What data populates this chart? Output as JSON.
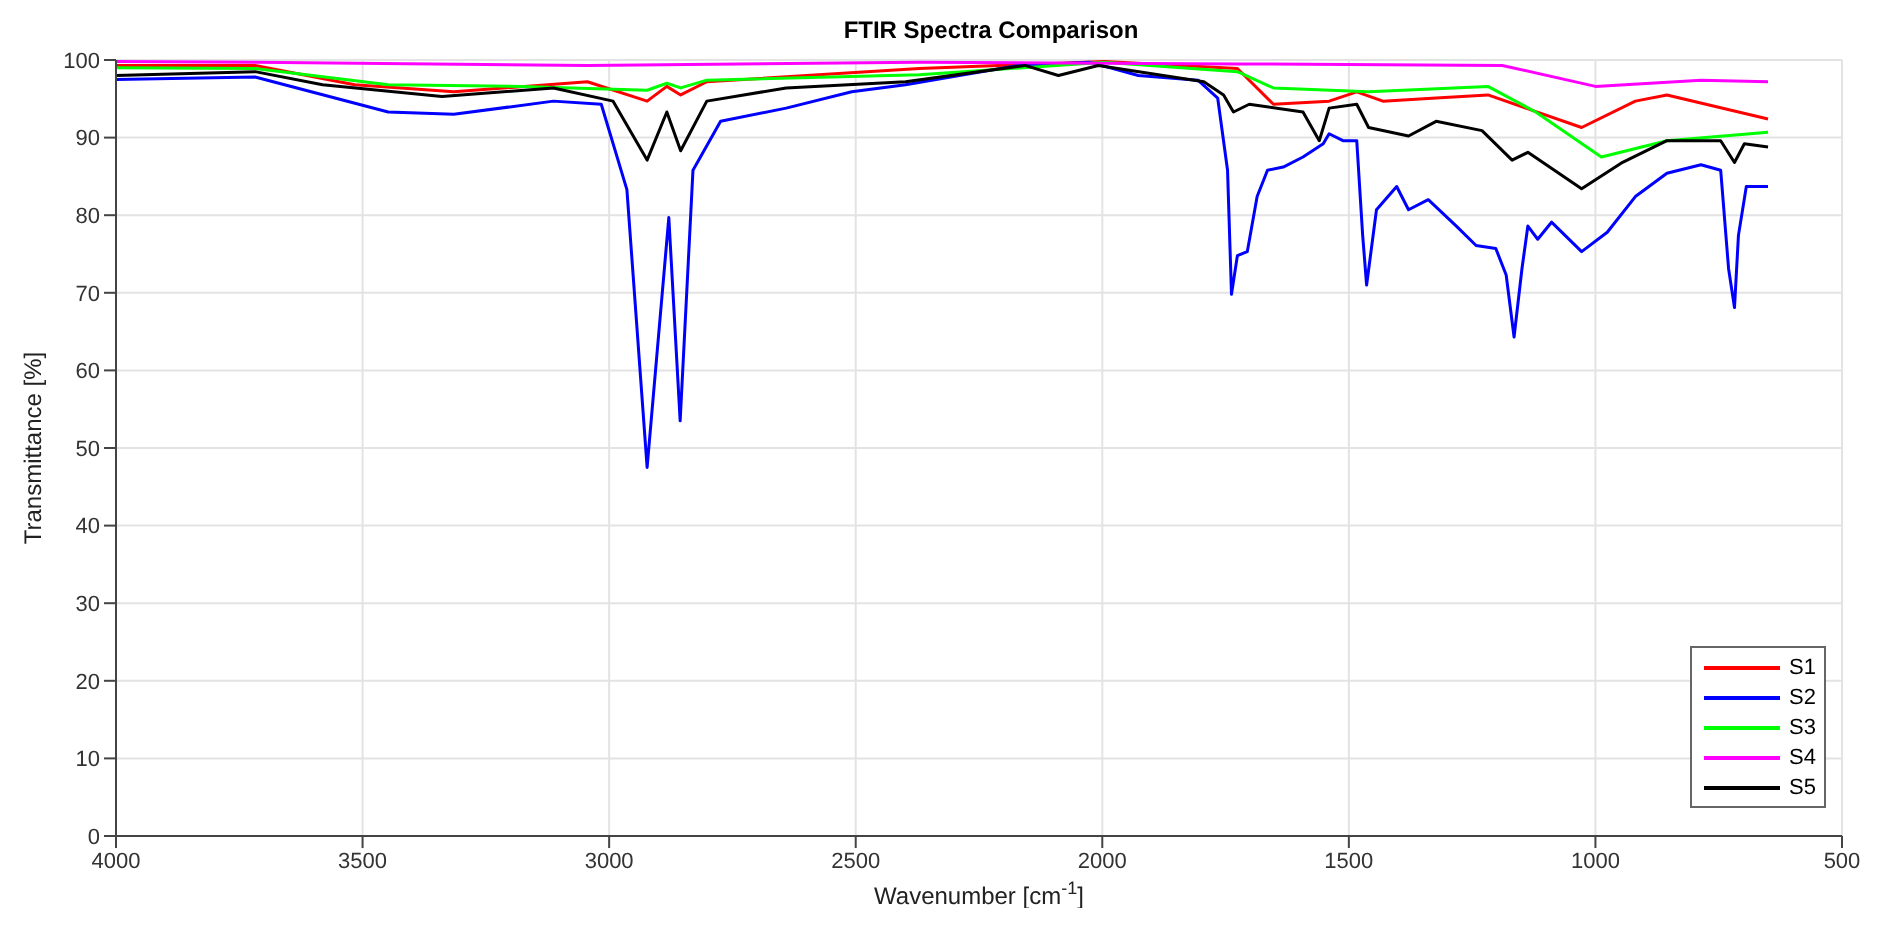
{
  "chart_data": {
    "type": "line",
    "title": "FTIR Spectra Comparison",
    "xlabel": "Wavenumber [cm$^{-1}$]",
    "ylabel": "Transmittance [%]",
    "xlim": [
      4000,
      500
    ],
    "xticks": [
      4000,
      3500,
      3000,
      2500,
      2000,
      1500,
      1000,
      500
    ],
    "ylim": [
      0,
      100
    ],
    "yticks": [
      0,
      10,
      20,
      30,
      40,
      50,
      60,
      70,
      80,
      90,
      100
    ],
    "grid": true,
    "legend": "bottom right",
    "marker": "none",
    "line_style": "solid",
    "series": [
      {
        "name": "S1",
        "color": "#ff0000",
        "x": [
          4000,
          3718,
          3516,
          3315,
          3044,
          2923,
          2883,
          2855,
          2802,
          2371,
          1996,
          1726,
          1653,
          1540,
          1484,
          1431,
          1323,
          1218,
          1028,
          919,
          855,
          650
        ],
        "values": [
          99.3,
          99.3,
          96.8,
          95.9,
          97.2,
          94.7,
          96.6,
          95.5,
          97.2,
          98.9,
          99.8,
          98.9,
          94.3,
          94.7,
          95.9,
          94.7,
          95.1,
          95.5,
          91.3,
          94.7,
          95.5,
          92.4
        ]
      },
      {
        "name": "S2",
        "color": "#0000ff",
        "x": [
          4000,
          3718,
          3448,
          3315,
          3113,
          3016,
          2964,
          2923,
          2879,
          2856,
          2830,
          2774,
          2641,
          2508,
          2399,
          2169,
          2024,
          1927,
          1806,
          1766,
          1746,
          1738,
          1726,
          1706,
          1686,
          1665,
          1633,
          1593,
          1552,
          1540,
          1512,
          1484,
          1472,
          1464,
          1444,
          1403,
          1379,
          1339,
          1282,
          1242,
          1202,
          1181,
          1165,
          1149,
          1137,
          1117,
          1089,
          1028,
          976,
          919,
          855,
          786,
          746,
          730,
          718,
          710,
          694,
          650
        ],
        "values": [
          97.5,
          97.8,
          93.3,
          93,
          94.7,
          94.3,
          83.3,
          47.5,
          79.7,
          53.5,
          85.8,
          92.1,
          93.8,
          95.9,
          96.8,
          99.3,
          99.7,
          98,
          97.4,
          95.1,
          85.8,
          69.8,
          74.8,
          75.3,
          82.4,
          85.8,
          86.2,
          87.5,
          89.2,
          90.5,
          89.6,
          89.6,
          77.4,
          71,
          80.7,
          83.7,
          80.7,
          82,
          78.6,
          76.1,
          75.7,
          72.3,
          64.3,
          73.1,
          78.6,
          76.9,
          79.1,
          75.3,
          77.8,
          82.4,
          85.4,
          86.5,
          85.8,
          73.1,
          68.1,
          77.4,
          83.7,
          83.7
        ]
      },
      {
        "name": "S3",
        "color": "#00ff00",
        "x": [
          4000,
          3718,
          3448,
          3177,
          2923,
          2883,
          2855,
          2802,
          2371,
          1996,
          1726,
          1653,
          1460,
          1218,
          1121,
          988,
          855,
          650
        ],
        "values": [
          99,
          98.9,
          96.8,
          96.6,
          96.1,
          97,
          96.4,
          97.4,
          98.1,
          99.7,
          98.5,
          96.4,
          95.9,
          96.6,
          93.3,
          87.5,
          89.6,
          90.7
        ]
      },
      {
        "name": "S4",
        "color": "#ff00ff",
        "x": [
          4000,
          3718,
          3044,
          2371,
          1726,
          1189,
          1000,
          786,
          650
        ],
        "values": [
          99.8,
          99.7,
          99.3,
          99.7,
          99.5,
          99.3,
          96.6,
          97.4,
          97.2
        ]
      },
      {
        "name": "S5",
        "color": "#000000",
        "x": [
          4000,
          3718,
          3581,
          3339,
          3113,
          2992,
          2923,
          2883,
          2855,
          2802,
          2641,
          2399,
          2157,
          2089,
          2008,
          1794,
          1754,
          1734,
          1702,
          1593,
          1560,
          1540,
          1484,
          1460,
          1379,
          1323,
          1230,
          1169,
          1137,
          1028,
          948,
          855,
          746,
          718,
          698,
          650
        ],
        "values": [
          98,
          98.5,
          96.8,
          95.3,
          96.4,
          94.7,
          87.1,
          93.3,
          88.3,
          94.7,
          96.4,
          97.2,
          99.3,
          98,
          99.3,
          97.2,
          95.5,
          93.3,
          94.3,
          93.3,
          89.6,
          93.8,
          94.3,
          91.3,
          90.2,
          92.1,
          90.9,
          87.1,
          88.1,
          83.4,
          86.7,
          89.6,
          89.6,
          86.8,
          89.2,
          88.8
        ]
      }
    ]
  }
}
